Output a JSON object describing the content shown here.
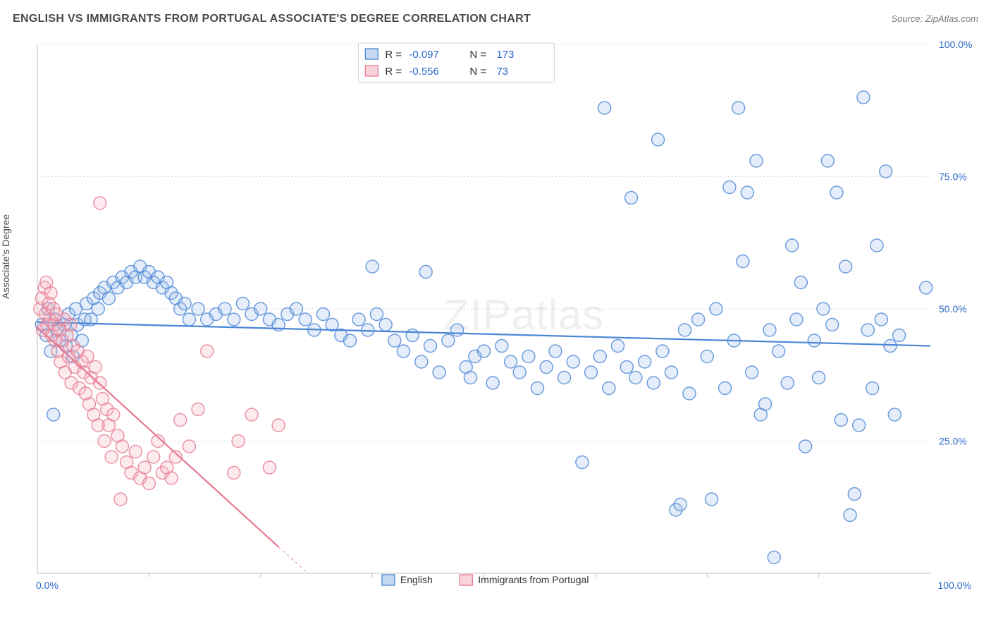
{
  "title": "ENGLISH VS IMMIGRANTS FROM PORTUGAL ASSOCIATE'S DEGREE CORRELATION CHART",
  "source": "Source: ZipAtlas.com",
  "ylabel": "Associate's Degree",
  "watermark": "ZIPatlas",
  "chart": {
    "type": "scatter",
    "xlim": [
      0,
      100
    ],
    "ylim": [
      0,
      100
    ],
    "x_ticks": [
      0,
      100
    ],
    "x_tick_labels": [
      "0.0%",
      "100.0%"
    ],
    "x_minor_tick_step": 12.5,
    "y_ticks": [
      25,
      50,
      75,
      100
    ],
    "y_tick_labels": [
      "25.0%",
      "50.0%",
      "75.0%",
      "100.0%"
    ],
    "grid_color": "#d8d8d8",
    "grid_dash": "2,3",
    "axis_color": "#c0c0c0",
    "background_color": "#ffffff",
    "label_color": "#2968c8",
    "marker_radius": 9,
    "marker_stroke_width": 1.5,
    "marker_fill_opacity": 0.28,
    "trend_line_width": 2.2
  },
  "series": [
    {
      "name": "English",
      "stroke": "#4b86d6",
      "fill": "#9ebfeb",
      "r_value": "-0.097",
      "n_value": "173",
      "trend": {
        "x1": 0,
        "y1": 47.5,
        "x2": 100,
        "y2": 43.0
      },
      "points": [
        [
          0.5,
          47
        ],
        [
          1,
          45
        ],
        [
          1.2,
          50
        ],
        [
          1.5,
          42
        ],
        [
          1.8,
          30
        ],
        [
          2,
          48
        ],
        [
          2.2,
          46
        ],
        [
          2.5,
          44
        ],
        [
          3,
          47
        ],
        [
          3.2,
          43
        ],
        [
          3.5,
          49
        ],
        [
          3.8,
          45
        ],
        [
          4,
          41
        ],
        [
          4.3,
          50
        ],
        [
          4.5,
          47
        ],
        [
          5,
          44
        ],
        [
          5.3,
          48
        ],
        [
          5.5,
          51
        ],
        [
          6,
          48
        ],
        [
          6.3,
          52
        ],
        [
          6.8,
          50
        ],
        [
          7,
          53
        ],
        [
          7.5,
          54
        ],
        [
          8,
          52
        ],
        [
          8.5,
          55
        ],
        [
          9,
          54
        ],
        [
          9.5,
          56
        ],
        [
          10,
          55
        ],
        [
          10.5,
          57
        ],
        [
          11,
          56
        ],
        [
          11.5,
          58
        ],
        [
          12,
          56
        ],
        [
          12.5,
          57
        ],
        [
          13,
          55
        ],
        [
          13.5,
          56
        ],
        [
          14,
          54
        ],
        [
          14.5,
          55
        ],
        [
          15,
          53
        ],
        [
          15.5,
          52
        ],
        [
          16,
          50
        ],
        [
          16.5,
          51
        ],
        [
          17,
          48
        ],
        [
          18,
          50
        ],
        [
          19,
          48
        ],
        [
          20,
          49
        ],
        [
          21,
          50
        ],
        [
          22,
          48
        ],
        [
          23,
          51
        ],
        [
          24,
          49
        ],
        [
          25,
          50
        ],
        [
          26,
          48
        ],
        [
          27,
          47
        ],
        [
          28,
          49
        ],
        [
          29,
          50
        ],
        [
          30,
          48
        ],
        [
          31,
          46
        ],
        [
          32,
          49
        ],
        [
          33,
          47
        ],
        [
          34,
          45
        ],
        [
          35,
          44
        ],
        [
          36,
          48
        ],
        [
          37,
          46
        ],
        [
          37.5,
          58
        ],
        [
          38,
          49
        ],
        [
          39,
          47
        ],
        [
          40,
          44
        ],
        [
          41,
          42
        ],
        [
          42,
          45
        ],
        [
          43,
          40
        ],
        [
          43.5,
          57
        ],
        [
          44,
          43
        ],
        [
          45,
          38
        ],
        [
          46,
          44
        ],
        [
          47,
          46
        ],
        [
          48,
          39
        ],
        [
          48.5,
          37
        ],
        [
          49,
          41
        ],
        [
          50,
          42
        ],
        [
          51,
          36
        ],
        [
          52,
          43
        ],
        [
          53,
          40
        ],
        [
          54,
          38
        ],
        [
          55,
          41
        ],
        [
          56,
          35
        ],
        [
          57,
          39
        ],
        [
          58,
          42
        ],
        [
          59,
          37
        ],
        [
          60,
          40
        ],
        [
          61,
          21
        ],
        [
          62,
          38
        ],
        [
          63,
          41
        ],
        [
          63.5,
          88
        ],
        [
          64,
          35
        ],
        [
          65,
          43
        ],
        [
          66,
          39
        ],
        [
          66.5,
          71
        ],
        [
          67,
          37
        ],
        [
          68,
          40
        ],
        [
          69,
          36
        ],
        [
          69.5,
          82
        ],
        [
          70,
          42
        ],
        [
          71,
          38
        ],
        [
          71.5,
          12
        ],
        [
          72,
          13
        ],
        [
          72.5,
          46
        ],
        [
          73,
          34
        ],
        [
          74,
          48
        ],
        [
          75,
          41
        ],
        [
          75.5,
          14
        ],
        [
          76,
          50
        ],
        [
          77,
          35
        ],
        [
          77.5,
          73
        ],
        [
          78,
          44
        ],
        [
          78.5,
          88
        ],
        [
          79,
          59
        ],
        [
          79.5,
          72
        ],
        [
          80,
          38
        ],
        [
          80.5,
          78
        ],
        [
          81,
          30
        ],
        [
          81.5,
          32
        ],
        [
          82,
          46
        ],
        [
          82.5,
          3
        ],
        [
          83,
          42
        ],
        [
          84,
          36
        ],
        [
          84.5,
          62
        ],
        [
          85,
          48
        ],
        [
          85.5,
          55
        ],
        [
          86,
          24
        ],
        [
          87,
          44
        ],
        [
          87.5,
          37
        ],
        [
          88,
          50
        ],
        [
          88.5,
          78
        ],
        [
          89,
          47
        ],
        [
          89.5,
          72
        ],
        [
          90,
          29
        ],
        [
          90.5,
          58
        ],
        [
          91,
          11
        ],
        [
          91.5,
          15
        ],
        [
          92,
          28
        ],
        [
          92.5,
          90
        ],
        [
          93,
          46
        ],
        [
          93.5,
          35
        ],
        [
          94,
          62
        ],
        [
          94.5,
          48
        ],
        [
          95,
          76
        ],
        [
          95.5,
          43
        ],
        [
          96,
          30
        ],
        [
          96.5,
          45
        ],
        [
          99.5,
          54
        ]
      ]
    },
    {
      "name": "Immigrants from Portugal",
      "stroke": "#e77990",
      "fill": "#f5b5c2",
      "r_value": "-0.556",
      "n_value": "73",
      "trend": {
        "x1": 0,
        "y1": 46.5,
        "x2": 27,
        "y2": 5
      },
      "trend_extend": {
        "x1": 27,
        "y1": 5,
        "x2": 30.3,
        "y2": 0
      },
      "points": [
        [
          0.3,
          50
        ],
        [
          0.5,
          52
        ],
        [
          0.6,
          46
        ],
        [
          0.8,
          54
        ],
        [
          0.9,
          49
        ],
        [
          1.0,
          55
        ],
        [
          1.1,
          47
        ],
        [
          1.3,
          51
        ],
        [
          1.4,
          48
        ],
        [
          1.5,
          53
        ],
        [
          1.6,
          45
        ],
        [
          1.8,
          50
        ],
        [
          1.9,
          47
        ],
        [
          2.0,
          44
        ],
        [
          2.1,
          49
        ],
        [
          2.3,
          42
        ],
        [
          2.5,
          46
        ],
        [
          2.6,
          40
        ],
        [
          2.8,
          44
        ],
        [
          3.0,
          48
        ],
        [
          3.1,
          38
        ],
        [
          3.3,
          45
        ],
        [
          3.5,
          41
        ],
        [
          3.7,
          47
        ],
        [
          3.8,
          36
        ],
        [
          4.0,
          43
        ],
        [
          4.2,
          39
        ],
        [
          4.5,
          42
        ],
        [
          4.7,
          35
        ],
        [
          5.0,
          40
        ],
        [
          5.2,
          38
        ],
        [
          5.4,
          34
        ],
        [
          5.6,
          41
        ],
        [
          5.8,
          32
        ],
        [
          6.0,
          37
        ],
        [
          6.3,
          30
        ],
        [
          6.5,
          39
        ],
        [
          6.8,
          28
        ],
        [
          7.0,
          36
        ],
        [
          7.0,
          70
        ],
        [
          7.3,
          33
        ],
        [
          7.5,
          25
        ],
        [
          7.8,
          31
        ],
        [
          8.0,
          28
        ],
        [
          8.3,
          22
        ],
        [
          8.5,
          30
        ],
        [
          9.0,
          26
        ],
        [
          9.3,
          14
        ],
        [
          9.5,
          24
        ],
        [
          10.0,
          21
        ],
        [
          10.5,
          19
        ],
        [
          11.0,
          23
        ],
        [
          11.5,
          18
        ],
        [
          12.0,
          20
        ],
        [
          12.5,
          17
        ],
        [
          13.0,
          22
        ],
        [
          13.5,
          25
        ],
        [
          14.0,
          19
        ],
        [
          14.5,
          20
        ],
        [
          15.0,
          18
        ],
        [
          15.5,
          22
        ],
        [
          16.0,
          29
        ],
        [
          17.0,
          24
        ],
        [
          18.0,
          31
        ],
        [
          19.0,
          42
        ],
        [
          22.0,
          19
        ],
        [
          22.5,
          25
        ],
        [
          24.0,
          30
        ],
        [
          26.0,
          20
        ],
        [
          27.0,
          28
        ]
      ]
    }
  ],
  "legend_top": {
    "r_label": "R =",
    "n_label": "N ="
  },
  "legend_bottom": {
    "items": [
      "English",
      "Immigrants from Portugal"
    ]
  }
}
